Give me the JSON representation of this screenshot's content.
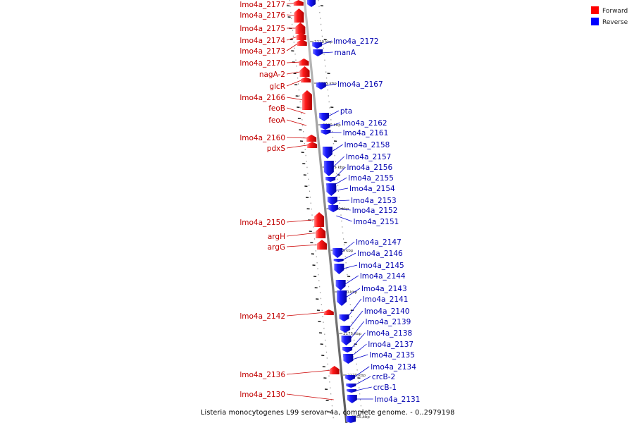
{
  "colors": {
    "forward": "#ff0000",
    "forward_label": "#c00000",
    "reverse": "#0000ff",
    "reverse_label": "#0000b0",
    "axis": "#999999"
  },
  "legend": [
    {
      "label": "Forward",
      "strand": "forward"
    },
    {
      "label": "Reverse",
      "strand": "reverse"
    }
  ],
  "caption": "Listeria monocytogenes L99 serovar 4a, complete genome. - 0..2979198",
  "ticks": [
    {
      "label": "2210 kbp",
      "pos_kbp": 2210
    },
    {
      "label": "2205 kbp",
      "pos_kbp": 2205
    },
    {
      "label": "2200 kbp",
      "pos_kbp": 2200
    },
    {
      "label": "2195 kbp",
      "pos_kbp": 2195
    },
    {
      "label": "2190 kbp",
      "pos_kbp": 2190
    },
    {
      "label": "2185 kbp",
      "pos_kbp": 2185
    },
    {
      "label": "2180 kbp",
      "pos_kbp": 2180
    },
    {
      "label": "2175 kbp",
      "pos_kbp": 2175
    },
    {
      "label": "2170 kbp",
      "pos_kbp": 2170
    },
    {
      "label": "2165 kbp",
      "pos_kbp": 2165
    }
  ],
  "forward_genes": [
    "lmo4a_2177",
    "lmo4a_2176",
    "lmo4a_2175",
    "lmo4a_2174",
    "lmo4a_2173",
    "lmo4a_2170",
    "nagA-2",
    "glcR",
    "lmo4a_2166",
    "feoB",
    "feoA",
    "lmo4a_2160",
    "pdxS",
    "lmo4a_2150",
    "argH",
    "argG",
    "lmo4a_2142",
    "lmo4a_2136",
    "lmo4a_2130"
  ],
  "reverse_genes": [
    "lmo4a_2172",
    "manA",
    "lmo4a_2167",
    "pta",
    "lmo4a_2162",
    "lmo4a_2161",
    "lmo4a_2158",
    "lmo4a_2157",
    "lmo4a_2156",
    "lmo4a_2155",
    "lmo4a_2154",
    "lmo4a_2153",
    "lmo4a_2152",
    "lmo4a_2151",
    "lmo4a_2147",
    "lmo4a_2146",
    "lmo4a_2145",
    "lmo4a_2144",
    "lmo4a_2143",
    "lmo4a_2141",
    "lmo4a_2140",
    "lmo4a_2139",
    "lmo4a_2138",
    "lmo4a_2137",
    "lmo4a_2135",
    "lmo4a_2134",
    "crcB-2",
    "crcB-1",
    "lmo4a_2131"
  ]
}
